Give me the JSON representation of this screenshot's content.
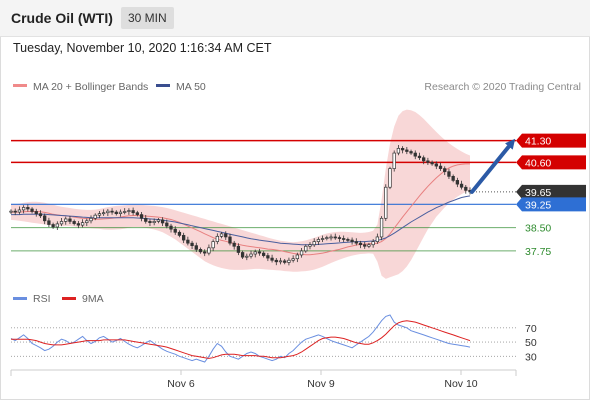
{
  "header": {
    "title": "Crude Oil (WTI)",
    "timeframe": "30 MIN",
    "timestamp": "Tuesday, November 10, 2020 1:16:34 AM CET"
  },
  "legend": {
    "ma20_bb": "MA 20 + Bollinger Bands",
    "ma50": "MA 50",
    "credit": "Research © 2020 Trading Central"
  },
  "rsi_legend": {
    "rsi": "RSI",
    "ma": "9MA"
  },
  "colors": {
    "resistance": "#d40000",
    "support": "#2e8b2e",
    "pivot": "#2e6fd4",
    "current": "#333333",
    "candle_up": "#ffffff",
    "candle_down": "#333333",
    "bollinger": "#f6c9c9",
    "ma20": "#e88080",
    "ma50": "#4a5f9e",
    "arrow": "#2b5aa6",
    "rsi": "#6a8fe0",
    "rsi_ma": "#dd2222"
  },
  "chart_data": [
    {
      "type": "line",
      "title": "Crude Oil (WTI)",
      "timeframe": "30 MIN",
      "x_ticks": [
        "Nov 6",
        "Nov 9",
        "Nov 10"
      ],
      "ylim": [
        36.75,
        42.35
      ],
      "levels": [
        {
          "label": "41.30",
          "value": 41.3,
          "kind": "resistance"
        },
        {
          "label": "40.60",
          "value": 40.6,
          "kind": "resistance"
        },
        {
          "label": "39.65",
          "value": 39.65,
          "kind": "current"
        },
        {
          "label": "39.25",
          "value": 39.25,
          "kind": "pivot"
        },
        {
          "label": "38.50",
          "value": 38.5,
          "kind": "support"
        },
        {
          "label": "37.75",
          "value": 37.75,
          "kind": "support"
        }
      ],
      "close": [
        39.03,
        39.0,
        39.07,
        39.15,
        39.1,
        39.02,
        38.95,
        38.88,
        38.72,
        38.6,
        38.52,
        38.62,
        38.7,
        38.78,
        38.7,
        38.63,
        38.58,
        38.66,
        38.72,
        38.8,
        38.9,
        38.95,
        38.98,
        39.03,
        39.0,
        38.95,
        39.0,
        39.02,
        39.05,
        38.98,
        38.92,
        38.8,
        38.7,
        38.66,
        38.7,
        38.75,
        38.65,
        38.55,
        38.45,
        38.35,
        38.25,
        38.1,
        38.0,
        37.92,
        37.8,
        37.72,
        37.68,
        37.85,
        38.05,
        38.22,
        38.3,
        38.2,
        38.0,
        37.9,
        37.7,
        37.55,
        37.58,
        37.65,
        37.72,
        37.68,
        37.6,
        37.52,
        37.45,
        37.4,
        37.43,
        37.38,
        37.45,
        37.5,
        37.62,
        37.75,
        37.9,
        37.95,
        38.05,
        38.12,
        38.15,
        38.18,
        38.2,
        38.18,
        38.15,
        38.12,
        38.1,
        38.05,
        38.0,
        37.95,
        37.9,
        37.95,
        38.05,
        38.2,
        38.8,
        39.8,
        40.4,
        40.9,
        41.05,
        41.0,
        40.95,
        40.9,
        40.8,
        40.75,
        40.65,
        40.6,
        40.55,
        40.48,
        40.4,
        40.3,
        40.15,
        40.02,
        39.9,
        39.8,
        39.7,
        39.65
      ],
      "ma20": [
        39.0,
        39.0,
        39.0,
        39.01,
        39.02,
        39.02,
        39.02,
        39.01,
        38.99,
        38.96,
        38.93,
        38.91,
        38.89,
        38.88,
        38.86,
        38.84,
        38.82,
        38.8,
        38.79,
        38.78,
        38.77,
        38.77,
        38.78,
        38.79,
        38.8,
        38.82,
        38.84,
        38.86,
        38.88,
        38.89,
        38.89,
        38.88,
        38.87,
        38.86,
        38.85,
        38.84,
        38.82,
        38.79,
        38.76,
        38.72,
        38.67,
        38.61,
        38.55,
        38.49,
        38.43,
        38.37,
        38.3,
        38.24,
        38.18,
        38.13,
        38.09,
        38.06,
        38.02,
        37.99,
        37.96,
        37.93,
        37.91,
        37.89,
        37.87,
        37.85,
        37.83,
        37.81,
        37.8,
        37.78,
        37.76,
        37.73,
        37.7,
        37.67,
        37.65,
        37.64,
        37.63,
        37.63,
        37.64,
        37.66,
        37.68,
        37.71,
        37.74,
        37.77,
        37.8,
        37.84,
        37.88,
        37.91,
        37.94,
        37.96,
        37.97,
        37.98,
        37.99,
        38.0,
        38.05,
        38.15,
        38.3,
        38.48,
        38.66,
        38.84,
        39.01,
        39.18,
        39.35,
        39.52,
        39.68,
        39.83,
        39.97,
        40.1,
        40.22,
        40.33,
        40.42,
        40.48,
        40.52,
        40.54,
        40.55,
        40.55
      ],
      "ma50": [
        38.92,
        38.92,
        38.92,
        38.93,
        38.93,
        38.93,
        38.93,
        38.93,
        38.93,
        38.92,
        38.91,
        38.9,
        38.89,
        38.88,
        38.87,
        38.86,
        38.85,
        38.84,
        38.83,
        38.82,
        38.82,
        38.82,
        38.82,
        38.82,
        38.82,
        38.82,
        38.82,
        38.82,
        38.82,
        38.82,
        38.81,
        38.8,
        38.79,
        38.78,
        38.77,
        38.76,
        38.74,
        38.72,
        38.7,
        38.68,
        38.65,
        38.62,
        38.59,
        38.56,
        38.53,
        38.5,
        38.47,
        38.44,
        38.41,
        38.38,
        38.35,
        38.32,
        38.29,
        38.26,
        38.23,
        38.2,
        38.17,
        38.14,
        38.12,
        38.1,
        38.08,
        38.06,
        38.04,
        38.02,
        38.0,
        37.99,
        37.98,
        37.97,
        37.96,
        37.95,
        37.95,
        37.95,
        37.95,
        37.96,
        37.97,
        37.98,
        37.99,
        38.0,
        38.01,
        38.02,
        38.03,
        38.04,
        38.05,
        38.05,
        38.05,
        38.06,
        38.07,
        38.09,
        38.12,
        38.17,
        38.24,
        38.32,
        38.41,
        38.5,
        38.59,
        38.68,
        38.76,
        38.84,
        38.92,
        39.0,
        39.07,
        39.14,
        39.2,
        39.26,
        39.32,
        39.37,
        39.42,
        39.47,
        39.5,
        39.52
      ],
      "bb_upper": [
        39.25,
        39.25,
        39.27,
        39.3,
        39.32,
        39.33,
        39.33,
        39.32,
        39.3,
        39.27,
        39.24,
        39.2,
        39.17,
        39.15,
        39.13,
        39.11,
        39.09,
        39.08,
        39.07,
        39.07,
        39.08,
        39.1,
        39.13,
        39.16,
        39.18,
        39.2,
        39.21,
        39.22,
        39.23,
        39.24,
        39.24,
        39.23,
        39.22,
        39.21,
        39.2,
        39.18,
        39.16,
        39.13,
        39.1,
        39.06,
        39.02,
        38.98,
        38.94,
        38.9,
        38.86,
        38.82,
        38.78,
        38.74,
        38.7,
        38.66,
        38.62,
        38.58,
        38.54,
        38.5,
        38.46,
        38.42,
        38.38,
        38.34,
        38.3,
        38.26,
        38.22,
        38.18,
        38.14,
        38.11,
        38.08,
        38.06,
        38.04,
        38.03,
        38.04,
        38.06,
        38.09,
        38.13,
        38.17,
        38.22,
        38.27,
        38.31,
        38.34,
        38.36,
        38.37,
        38.37,
        38.36,
        38.35,
        38.34,
        38.33,
        38.34,
        38.36,
        38.4,
        38.6,
        39.4,
        40.4,
        41.2,
        41.75,
        42.1,
        42.25,
        42.3,
        42.28,
        42.22,
        42.12,
        42.0,
        41.86,
        41.72,
        41.58,
        41.45,
        41.33,
        41.22,
        41.12,
        41.03,
        40.95,
        40.88,
        40.82
      ],
      "bb_lower": [
        38.75,
        38.74,
        38.72,
        38.7,
        38.68,
        38.66,
        38.64,
        38.62,
        38.6,
        38.58,
        38.56,
        38.55,
        38.55,
        38.55,
        38.55,
        38.54,
        38.52,
        38.5,
        38.49,
        38.48,
        38.47,
        38.46,
        38.44,
        38.43,
        38.43,
        38.44,
        38.45,
        38.47,
        38.5,
        38.52,
        38.52,
        38.51,
        38.49,
        38.47,
        38.44,
        38.4,
        38.35,
        38.28,
        38.2,
        38.12,
        38.02,
        37.92,
        37.82,
        37.72,
        37.62,
        37.52,
        37.42,
        37.35,
        37.29,
        37.24,
        37.2,
        37.17,
        37.15,
        37.14,
        37.14,
        37.14,
        37.15,
        37.16,
        37.17,
        37.17,
        37.16,
        37.15,
        37.14,
        37.13,
        37.12,
        37.1,
        37.09,
        37.08,
        37.08,
        37.09,
        37.1,
        37.12,
        37.15,
        37.19,
        37.24,
        37.3,
        37.36,
        37.42,
        37.47,
        37.52,
        37.56,
        37.6,
        37.63,
        37.65,
        37.66,
        37.67,
        37.66,
        37.4,
        36.95,
        36.85,
        36.9,
        36.95,
        37.0,
        37.1,
        37.25,
        37.45,
        37.7,
        37.95,
        38.2,
        38.45,
        38.65,
        38.85,
        39.0,
        39.15,
        39.28,
        39.4,
        39.5,
        39.58,
        39.65,
        39.7
      ],
      "projection": {
        "from": 39.65,
        "to": 41.3
      }
    },
    {
      "type": "line",
      "title": "RSI",
      "yticks": [
        70,
        50,
        30
      ],
      "ylim": [
        15,
        95
      ],
      "series": [
        {
          "name": "RSI",
          "values": [
            55,
            52,
            56,
            60,
            55,
            48,
            45,
            42,
            38,
            40,
            44,
            50,
            54,
            52,
            48,
            50,
            54,
            58,
            52,
            48,
            51,
            56,
            58,
            54,
            50,
            52,
            55,
            51,
            47,
            44,
            42,
            45,
            49,
            52,
            48,
            44,
            40,
            37,
            35,
            33,
            30,
            28,
            26,
            24,
            26,
            24,
            22,
            30,
            40,
            48,
            44,
            36,
            30,
            28,
            26,
            30,
            34,
            36,
            34,
            30,
            28,
            26,
            24,
            26,
            30,
            28,
            34,
            38,
            44,
            50,
            54,
            56,
            58,
            60,
            58,
            55,
            52,
            50,
            48,
            46,
            44,
            42,
            46,
            50,
            54,
            58,
            64,
            72,
            80,
            86,
            88,
            78,
            74,
            72,
            70,
            66,
            64,
            62,
            60,
            58,
            56,
            54,
            52,
            50,
            48,
            47,
            46,
            45,
            44,
            43
          ]
        },
        {
          "name": "9MA",
          "values": [
            54,
            54,
            54,
            54,
            54,
            53,
            52,
            50,
            48,
            47,
            46,
            46,
            46,
            47,
            48,
            49,
            50,
            51,
            52,
            52,
            52,
            52,
            53,
            53,
            53,
            53,
            53,
            53,
            52,
            51,
            50,
            49,
            48,
            47,
            46,
            45,
            44,
            43,
            41,
            39,
            37,
            35,
            33,
            31,
            30,
            29,
            28,
            27,
            28,
            30,
            32,
            33,
            33,
            33,
            32,
            31,
            31,
            31,
            31,
            30,
            30,
            29,
            28,
            28,
            28,
            29,
            30,
            31,
            33,
            36,
            40,
            44,
            48,
            52,
            55,
            56,
            57,
            57,
            56,
            55,
            53,
            51,
            49,
            48,
            47,
            47,
            49,
            52,
            56,
            61,
            67,
            73,
            77,
            79,
            80,
            79,
            78,
            76,
            74,
            72,
            70,
            68,
            66,
            64,
            62,
            60,
            58,
            56,
            54,
            52
          ]
        }
      ]
    }
  ]
}
